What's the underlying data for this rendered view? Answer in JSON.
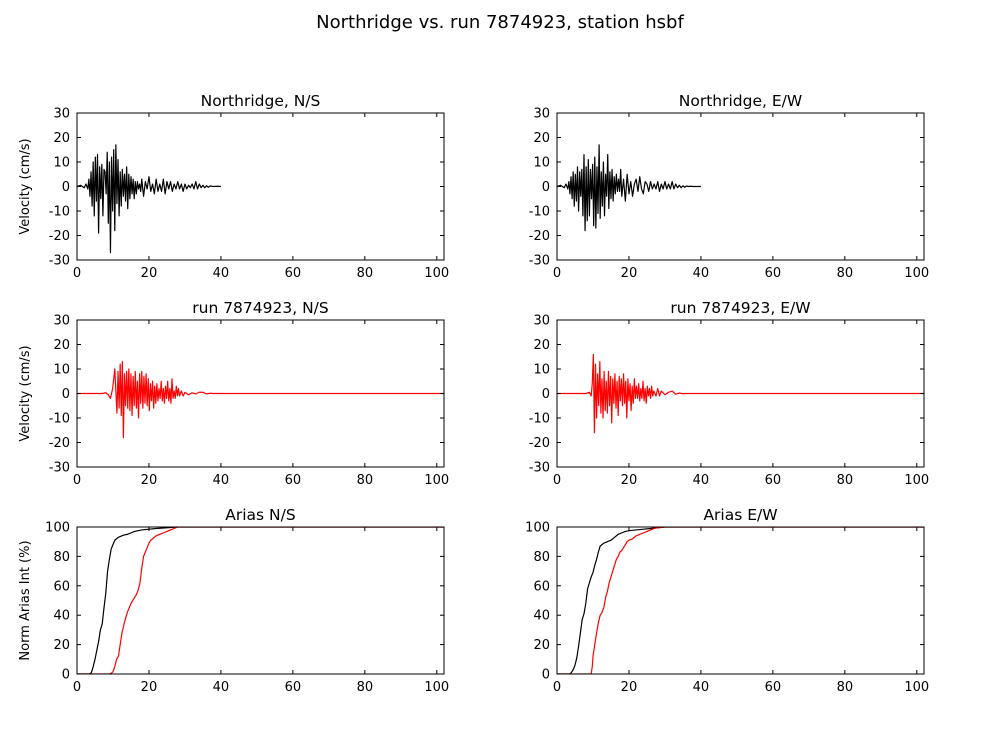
{
  "figure": {
    "title": "Northridge vs. run 7874923, station hsbf"
  },
  "colors": {
    "recorded": "#000000",
    "simulated": "#ff0000"
  },
  "chart_data": [
    {
      "type": "line",
      "title": "Northridge, N/S",
      "xlabel": "",
      "ylabel": "Velocity (cm/s)",
      "xlim": [
        0,
        102
      ],
      "ylim": [
        -30,
        30
      ],
      "xticks": [
        0,
        20,
        40,
        60,
        80,
        100
      ],
      "yticks": [
        30,
        20,
        10,
        0,
        -10,
        -20,
        -30
      ],
      "grid": false,
      "series": [
        {
          "color": "#000000",
          "x": [
            0,
            1,
            2,
            2.5,
            3,
            3.3,
            3.6,
            3.9,
            4.2,
            4.5,
            4.8,
            5.1,
            5.4,
            5.7,
            6,
            6.3,
            6.6,
            6.9,
            7.2,
            7.5,
            7.8,
            8.1,
            8.4,
            8.7,
            9,
            9.3,
            9.6,
            9.9,
            10.2,
            10.5,
            10.8,
            11.1,
            11.4,
            11.7,
            12,
            12.3,
            12.6,
            12.9,
            13.2,
            13.5,
            13.8,
            14.1,
            14.4,
            14.7,
            15,
            15.3,
            15.6,
            15.9,
            16.2,
            16.5,
            16.8,
            17.1,
            17.4,
            17.7,
            18,
            18.5,
            19,
            19.5,
            20,
            20.5,
            21,
            21.5,
            22,
            22.5,
            23,
            23.5,
            24,
            24.5,
            25,
            25.5,
            26,
            26.5,
            27,
            27.5,
            28,
            28.5,
            29,
            29.5,
            30,
            30.5,
            31,
            31.5,
            32,
            32.5,
            33,
            33.5,
            34,
            34.5,
            35,
            35.5,
            36,
            36.5,
            37,
            38,
            39,
            40
          ],
          "y": [
            0,
            0.5,
            -0.5,
            1,
            -1,
            3,
            -4,
            6,
            -8,
            10,
            -12,
            12,
            -6,
            13,
            -19,
            8,
            -5,
            9,
            -12,
            7,
            6,
            -3,
            14,
            -15,
            10,
            -27,
            12,
            -10,
            15,
            -18,
            17,
            -7,
            11,
            -12,
            6,
            -8,
            7,
            -4,
            5,
            -6,
            8,
            -9,
            5,
            -5,
            4,
            -3,
            3,
            -5,
            2,
            -3,
            2,
            -1,
            1,
            -2,
            3,
            -4,
            2,
            -1,
            4,
            -2,
            1,
            -3,
            3,
            -2,
            1,
            -2,
            3,
            -3,
            2,
            -1,
            2,
            -2,
            1,
            -1,
            2,
            -1,
            1,
            -2,
            1,
            -1,
            0.5,
            -0.5,
            1,
            -1,
            2,
            -1,
            1,
            -0.5,
            0.5,
            -0.5,
            0.3,
            -0.3,
            0.2,
            0,
            0.1,
            0
          ]
        }
      ]
    },
    {
      "type": "line",
      "title": "Northridge, E/W",
      "xlabel": "",
      "ylabel": "",
      "xlim": [
        0,
        102
      ],
      "ylim": [
        -30,
        30
      ],
      "xticks": [
        0,
        20,
        40,
        60,
        80,
        100
      ],
      "yticks": [
        30,
        20,
        10,
        0,
        -10,
        -20,
        -30
      ],
      "grid": false,
      "series": [
        {
          "color": "#000000",
          "x": [
            0,
            1,
            2,
            2.5,
            3,
            3.3,
            3.6,
            3.9,
            4.2,
            4.5,
            4.8,
            5.1,
            5.4,
            5.7,
            6,
            6.3,
            6.6,
            6.9,
            7.2,
            7.5,
            7.8,
            8.1,
            8.4,
            8.7,
            9,
            9.3,
            9.6,
            9.9,
            10.2,
            10.5,
            10.8,
            11.1,
            11.4,
            11.7,
            12,
            12.3,
            12.6,
            12.9,
            13.2,
            13.5,
            13.8,
            14.1,
            14.4,
            14.7,
            15,
            15.3,
            15.6,
            15.9,
            16.2,
            16.5,
            16.8,
            17.1,
            17.4,
            17.7,
            18,
            18.5,
            19,
            19.5,
            20,
            20.5,
            21,
            21.5,
            22,
            22.5,
            23,
            23.5,
            24,
            24.5,
            25,
            25.5,
            26,
            26.5,
            27,
            27.5,
            28,
            28.5,
            29,
            29.5,
            30,
            30.5,
            31,
            31.5,
            32,
            32.5,
            33,
            33.5,
            34,
            34.5,
            35,
            35.5,
            36,
            36.5,
            37,
            38,
            39,
            40
          ],
          "y": [
            0,
            0.5,
            -0.5,
            1,
            -1,
            2,
            -3,
            4,
            -5,
            6,
            -8,
            5,
            -6,
            8,
            -10,
            6,
            -4,
            7,
            -12,
            13,
            -18,
            8,
            -14,
            11,
            -12,
            7,
            -5,
            9,
            -16,
            12,
            -17,
            8,
            -11,
            17,
            -13,
            6,
            -8,
            10,
            -12,
            5,
            -4,
            13,
            -9,
            6,
            -5,
            7,
            -6,
            4,
            -3,
            5,
            -2,
            3,
            -2,
            7,
            -4,
            3,
            -6,
            5,
            -3,
            2,
            -4,
            1,
            3,
            -2,
            4,
            -1,
            -3,
            2,
            1,
            -2,
            2,
            -1,
            1,
            -1,
            2,
            -2,
            1,
            -1,
            2,
            -1,
            1,
            -1,
            2,
            -1,
            1,
            -0.5,
            0.5,
            -0.5,
            0.3,
            -0.3,
            0.2,
            0,
            0.1,
            0,
            0,
            0
          ]
        }
      ]
    },
    {
      "type": "line",
      "title": "run 7874923, N/S",
      "xlabel": "",
      "ylabel": "Velocity (cm/s)",
      "xlim": [
        0,
        102
      ],
      "ylim": [
        -30,
        30
      ],
      "xticks": [
        0,
        20,
        40,
        60,
        80,
        100
      ],
      "yticks": [
        30,
        20,
        10,
        0,
        -10,
        -20,
        -30
      ],
      "grid": false,
      "series": [
        {
          "color": "#ff0000",
          "x": [
            0,
            4,
            7,
            8,
            8.7,
            9.3,
            9.9,
            10.5,
            11.1,
            11.4,
            11.7,
            12,
            12.3,
            12.6,
            12.9,
            13.2,
            13.5,
            13.8,
            14.1,
            14.4,
            14.7,
            15,
            15.3,
            15.6,
            15.9,
            16.2,
            16.5,
            16.8,
            17.1,
            17.4,
            17.7,
            18,
            18.3,
            18.6,
            18.9,
            19.2,
            19.5,
            19.8,
            20.1,
            20.4,
            20.7,
            21,
            21.3,
            21.6,
            21.9,
            22.2,
            22.5,
            22.8,
            23.1,
            23.4,
            23.7,
            24,
            24.3,
            24.6,
            24.9,
            25.2,
            25.5,
            25.8,
            26.1,
            26.4,
            26.7,
            27,
            27.3,
            27.6,
            27.9,
            28.2,
            28.5,
            29,
            29.5,
            30,
            31,
            32,
            33,
            34,
            35,
            36,
            37,
            38,
            40,
            102
          ],
          "y": [
            0,
            0,
            0,
            0.3,
            -0.5,
            -2,
            2,
            10,
            -8,
            9,
            -6,
            12,
            -9,
            13,
            -18,
            8,
            -5,
            9,
            -6,
            10,
            -7,
            8,
            -9,
            7,
            -5,
            9,
            -6,
            5,
            -10,
            8,
            -4,
            9,
            -6,
            7,
            -4,
            8,
            -5,
            6,
            -7,
            4,
            -3,
            5,
            -6,
            3,
            -4,
            4,
            -3,
            2,
            -2,
            5,
            -3,
            2,
            -4,
            3,
            -2,
            5,
            -3,
            2,
            -4,
            6,
            -2,
            1,
            -2,
            3,
            -1,
            2,
            -1,
            1,
            -1,
            0.5,
            -0.5,
            0.3,
            -0.2,
            0.5,
            0.5,
            -0.2,
            0.1,
            0,
            0,
            0
          ]
        }
      ]
    },
    {
      "type": "line",
      "title": "run 7874923, E/W",
      "xlabel": "",
      "ylabel": "",
      "xlim": [
        0,
        102
      ],
      "ylim": [
        -30,
        30
      ],
      "xticks": [
        0,
        20,
        40,
        60,
        80,
        100
      ],
      "yticks": [
        30,
        20,
        10,
        0,
        -10,
        -20,
        -30
      ],
      "grid": false,
      "series": [
        {
          "color": "#ff0000",
          "x": [
            0,
            5,
            8,
            9,
            9.5,
            9.8,
            10.1,
            10.4,
            10.7,
            11,
            11.3,
            11.6,
            11.9,
            12.2,
            12.5,
            12.8,
            13.1,
            13.4,
            13.7,
            14,
            14.3,
            14.6,
            14.9,
            15.2,
            15.5,
            15.8,
            16.1,
            16.4,
            16.7,
            17,
            17.3,
            17.6,
            17.9,
            18.2,
            18.5,
            18.8,
            19.1,
            19.4,
            19.7,
            20,
            20.3,
            20.6,
            20.9,
            21.2,
            21.5,
            21.8,
            22.1,
            22.4,
            22.7,
            23,
            23.3,
            23.6,
            23.9,
            24.2,
            24.5,
            24.8,
            25.1,
            25.4,
            25.7,
            26,
            26.3,
            26.6,
            26.9,
            27.5,
            28,
            28.5,
            29,
            30,
            31,
            32,
            33,
            34,
            35,
            36,
            38,
            40,
            102
          ],
          "y": [
            0,
            0,
            0,
            0.5,
            -1,
            4,
            16,
            -16,
            12,
            -10,
            8,
            -5,
            13,
            -8,
            6,
            -10,
            9,
            -7,
            5,
            -8,
            9,
            -5,
            7,
            -12,
            6,
            -4,
            8,
            -6,
            5,
            -9,
            7,
            -3,
            6,
            -5,
            8,
            -4,
            5,
            -10,
            6,
            -3,
            4,
            -7,
            3,
            -4,
            6,
            -2,
            3,
            -2,
            4,
            -3,
            2,
            -2,
            5,
            -3,
            2,
            -4,
            3,
            -1,
            2,
            -2,
            3,
            -1,
            1,
            -1,
            2,
            -1,
            1,
            -0.5,
            0.5,
            1,
            -0.3,
            0.2,
            -0.1,
            0,
            0,
            0,
            0
          ]
        }
      ]
    },
    {
      "type": "line",
      "title": "Arias N/S",
      "xlabel": "",
      "ylabel": "Norm Arias Int (%)",
      "xlim": [
        0,
        102
      ],
      "ylim": [
        0,
        100
      ],
      "xticks": [
        0,
        20,
        40,
        60,
        80,
        100
      ],
      "yticks": [
        100,
        80,
        60,
        40,
        20,
        0
      ],
      "grid": false,
      "series": [
        {
          "color": "#000000",
          "x": [
            0,
            3.5,
            4,
            4.5,
            5,
            5.5,
            6,
            6.5,
            7,
            7.5,
            8,
            8.5,
            9,
            9.5,
            10,
            10.5,
            11,
            11.5,
            12,
            13,
            14,
            15,
            16,
            18,
            20,
            22,
            25,
            28,
            30,
            40,
            102
          ],
          "y": [
            0,
            0,
            1,
            5,
            10,
            16,
            22,
            30,
            34,
            45,
            55,
            70,
            78,
            85,
            88,
            91,
            92,
            93,
            93.5,
            94.5,
            95,
            96,
            97,
            98,
            98.5,
            99,
            99.5,
            100,
            100,
            100,
            100
          ]
        },
        {
          "color": "#ff0000",
          "x": [
            0,
            9,
            9.5,
            10,
            10.5,
            11,
            11.5,
            12,
            12.5,
            13,
            13.5,
            14,
            14.5,
            15,
            15.5,
            16,
            16.5,
            17,
            17.5,
            18,
            18.5,
            19,
            19.5,
            20,
            20.5,
            21,
            22,
            23,
            24,
            25,
            26,
            27,
            28,
            30,
            102
          ],
          "y": [
            0,
            0,
            0.5,
            1.5,
            5,
            10,
            12,
            20,
            28,
            33,
            38,
            42,
            45,
            48,
            50,
            52,
            54,
            57,
            62,
            72,
            80,
            83,
            86,
            89,
            91,
            92,
            94,
            95,
            96,
            97,
            98,
            99,
            100,
            100,
            100
          ]
        }
      ]
    },
    {
      "type": "line",
      "title": "Arias E/W",
      "xlabel": "",
      "ylabel": "",
      "xlim": [
        0,
        102
      ],
      "ylim": [
        0,
        100
      ],
      "xticks": [
        0,
        20,
        40,
        60,
        80,
        100
      ],
      "yticks": [
        100,
        80,
        60,
        40,
        20,
        0
      ],
      "grid": false,
      "series": [
        {
          "color": "#000000",
          "x": [
            0,
            3.5,
            4,
            4.5,
            5,
            5.5,
            6,
            6.5,
            7,
            7.5,
            8,
            8.5,
            9,
            9.5,
            10,
            10.5,
            11,
            11.5,
            12,
            12.5,
            13,
            14,
            15,
            16,
            17,
            18,
            19,
            20,
            22,
            24,
            26,
            28,
            30,
            33,
            40,
            102
          ],
          "y": [
            0,
            0,
            1,
            3,
            6,
            11,
            19,
            28,
            37,
            41,
            48,
            58,
            62,
            66,
            69,
            74,
            78,
            83,
            87,
            88,
            89,
            90,
            91,
            93,
            95,
            96,
            97,
            97.5,
            98,
            98.5,
            99,
            99.5,
            100,
            100,
            100,
            100
          ]
        },
        {
          "color": "#ff0000",
          "x": [
            0,
            9.5,
            9.8,
            10,
            10.5,
            11,
            11.5,
            12,
            12.5,
            13,
            13.5,
            14,
            14.5,
            15,
            15.5,
            16,
            16.5,
            17,
            17.5,
            18,
            18.5,
            19,
            19.5,
            20,
            21,
            22,
            23,
            24,
            25,
            26,
            27,
            28,
            30,
            102
          ],
          "y": [
            0,
            0,
            5,
            12,
            20,
            28,
            35,
            40,
            42,
            45,
            52,
            56,
            62,
            66,
            70,
            74,
            78,
            80,
            83,
            84,
            86,
            88,
            90,
            91,
            92,
            94,
            95,
            96,
            97,
            98,
            99,
            99.5,
            100,
            100
          ]
        }
      ]
    }
  ]
}
